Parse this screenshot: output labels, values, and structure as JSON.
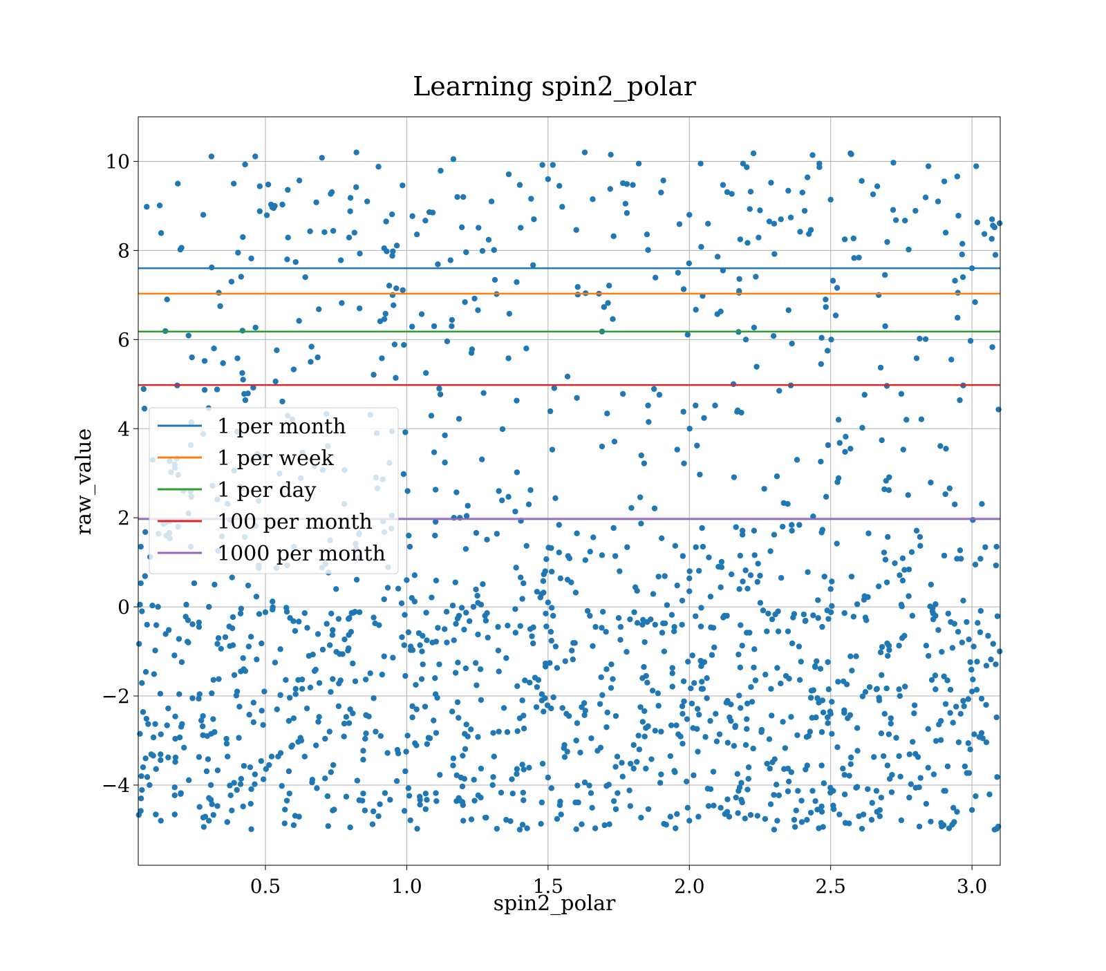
{
  "chart_data": {
    "type": "scatter",
    "title": "Learning spin2_polar",
    "xlabel": "spin2_polar",
    "ylabel": "raw_value",
    "xlim": [
      0.05,
      3.1
    ],
    "ylim": [
      -5.8,
      11.0
    ],
    "x_ticks": [
      0.5,
      1.0,
      1.5,
      2.0,
      2.5,
      3.0
    ],
    "x_tick_labels": [
      "0.5",
      "1.0",
      "1.5",
      "2.0",
      "2.5",
      "3.0"
    ],
    "y_ticks": [
      -4,
      -2,
      0,
      2,
      4,
      6,
      8,
      10
    ],
    "y_tick_labels": [
      "−4",
      "−2",
      "0",
      "2",
      "4",
      "6",
      "8",
      "10"
    ],
    "grid": true,
    "legend_placement": "center-left",
    "scatter_color": "#1f77b4",
    "scatter_sample_count": 1600,
    "scatter_description": "Dense cloud of points for x in [0.05, 3.1]; most values between -5 and 0, sparser points reaching up to about 10.2",
    "thresholds": [
      {
        "name": "1 per month",
        "y": 7.6,
        "color": "#1f77b4"
      },
      {
        "name": "1 per week",
        "y": 7.03,
        "color": "#ff7f0e"
      },
      {
        "name": "1 per day",
        "y": 6.18,
        "color": "#2ca02c"
      },
      {
        "name": "100 per month",
        "y": 4.98,
        "color": "#d62728"
      },
      {
        "name": "1000 per month",
        "y": 1.97,
        "color": "#9467bd"
      }
    ],
    "points_sample": [
      [
        0.08,
        8.98
      ],
      [
        0.19,
        9.5
      ],
      [
        0.24,
        5.6
      ],
      [
        0.28,
        8.8
      ],
      [
        0.31,
        7.62
      ],
      [
        0.35,
        5.47
      ],
      [
        0.42,
        8.3
      ],
      [
        0.45,
        7.82
      ],
      [
        0.48,
        9.44
      ],
      [
        0.52,
        9.03
      ],
      [
        0.56,
        9.03
      ],
      [
        0.58,
        8.29
      ],
      [
        0.6,
        5.33
      ],
      [
        0.62,
        9.57
      ],
      [
        0.66,
        5.5
      ],
      [
        0.68,
        9.08
      ],
      [
        0.7,
        10.08
      ],
      [
        0.74,
        8.44
      ],
      [
        0.77,
        6.82
      ],
      [
        0.8,
        8.88
      ],
      [
        0.86,
        9.1
      ],
      [
        0.92,
        8.05
      ],
      [
        0.95,
        7.0
      ],
      [
        0.99,
        5.88
      ],
      [
        1.02,
        8.77
      ],
      [
        1.08,
        8.86
      ],
      [
        1.12,
        9.79
      ],
      [
        1.16,
        6.44
      ],
      [
        1.2,
        9.2
      ],
      [
        1.24,
        6.92
      ],
      [
        1.3,
        9.1
      ],
      [
        1.36,
        5.58
      ],
      [
        1.4,
        9.47
      ],
      [
        1.45,
        8.7
      ],
      [
        1.5,
        9.6
      ],
      [
        1.55,
        8.98
      ],
      [
        1.6,
        8.46
      ],
      [
        1.63,
        10.2
      ],
      [
        1.68,
        7.03
      ],
      [
        1.72,
        9.38
      ],
      [
        1.8,
        9.47
      ],
      [
        1.85,
        8.36
      ],
      [
        1.9,
        9.3
      ],
      [
        1.96,
        7.5
      ],
      [
        2.0,
        8.8
      ],
      [
        2.04,
        9.95
      ],
      [
        2.1,
        7.86
      ],
      [
        2.15,
        9.27
      ],
      [
        2.2,
        6.0
      ],
      [
        2.25,
        8.9
      ],
      [
        2.3,
        8.6
      ],
      [
        2.35,
        9.34
      ],
      [
        2.4,
        9.3
      ],
      [
        2.46,
        9.95
      ],
      [
        2.5,
        9.14
      ],
      [
        2.55,
        8.25
      ],
      [
        2.6,
        7.84
      ],
      [
        2.65,
        9.26
      ],
      [
        2.7,
        8.19
      ],
      [
        2.8,
        8.89
      ],
      [
        2.88,
        9.1
      ],
      [
        2.95,
        7.05
      ],
      [
        3.0,
        7.6
      ],
      [
        3.08,
        8.52
      ],
      [
        0.12,
        0.0
      ],
      [
        0.22,
        0.05
      ],
      [
        0.3,
        0.0
      ],
      [
        0.5,
        -0.12
      ],
      [
        0.75,
        0.4
      ],
      [
        1.0,
        0.6
      ],
      [
        1.25,
        0.25
      ],
      [
        1.5,
        0.1
      ],
      [
        1.75,
        -0.25
      ],
      [
        2.0,
        0.35
      ],
      [
        2.25,
        0.7
      ],
      [
        2.5,
        0.4
      ],
      [
        2.75,
        0.05
      ],
      [
        3.0,
        -1.9
      ],
      [
        0.06,
        -4.3
      ],
      [
        0.2,
        -4.2
      ],
      [
        0.3,
        -4.8
      ],
      [
        0.6,
        -4.9
      ],
      [
        0.9,
        -4.7
      ],
      [
        1.2,
        -4.8
      ],
      [
        1.4,
        -5.0
      ],
      [
        1.7,
        -4.9
      ],
      [
        2.0,
        -4.8
      ],
      [
        2.3,
        -5.0
      ],
      [
        2.6,
        -4.7
      ],
      [
        2.9,
        -4.9
      ],
      [
        3.08,
        -5.0
      ],
      [
        0.4,
        -1.9
      ],
      [
        0.8,
        -2.3
      ],
      [
        1.1,
        -1.6
      ],
      [
        1.4,
        -2.5
      ],
      [
        1.6,
        -3.0
      ],
      [
        1.9,
        -2.8
      ],
      [
        2.2,
        -3.1
      ],
      [
        2.5,
        -2.4
      ],
      [
        2.8,
        -3.3
      ],
      [
        3.05,
        -2.2
      ]
    ]
  },
  "legend": {
    "items": [
      {
        "label": "1 per month",
        "color": "#1f77b4"
      },
      {
        "label": "1 per week",
        "color": "#ff7f0e"
      },
      {
        "label": "1 per day",
        "color": "#2ca02c"
      },
      {
        "label": "100 per month",
        "color": "#d62728"
      },
      {
        "label": "1000 per month",
        "color": "#9467bd"
      }
    ]
  }
}
